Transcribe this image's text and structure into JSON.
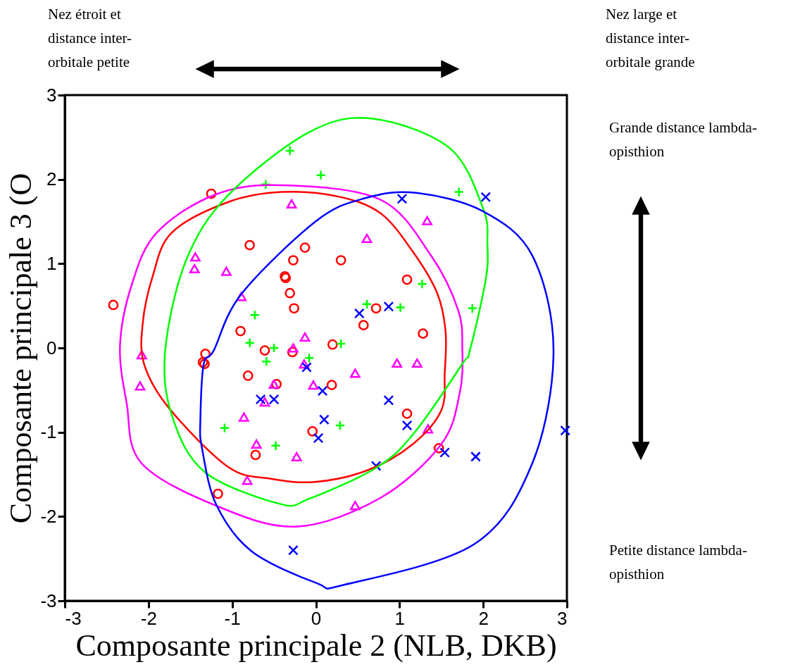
{
  "chart_data": {
    "type": "scatter",
    "xlabel": "Composante principale 2 (NLB, DKB)",
    "ylabel": "Composante principale 3 (O",
    "xlim": [
      -3,
      3
    ],
    "ylim": [
      -3,
      3
    ],
    "xticks": [
      -3,
      -2,
      -1,
      0,
      1,
      2,
      3
    ],
    "yticks": [
      -3,
      -2,
      -1,
      0,
      1,
      2,
      3
    ],
    "grid": false,
    "annotations": [
      "Nez étroit et\ndistance inter-\norbitale petite",
      "Nez large et\ndistance inter-\norbitale grande",
      "Grande distance lambda-\nopisthion",
      "Petite distance lambda-\nopisthion"
    ],
    "series": [
      {
        "marker": "circle",
        "color": "#ff0000",
        "x": [
          -2.42,
          -1.25,
          -0.79,
          -0.13,
          -0.27,
          0.3,
          -0.37,
          -0.36,
          -0.31,
          -0.26,
          1.09,
          0.72,
          0.57,
          1.28,
          -0.9,
          -0.61,
          -1.32,
          -1.35,
          -1.33,
          -0.81,
          -0.28,
          -0.47,
          0.19,
          0.2,
          -0.04,
          -0.72,
          -1.17,
          1.09,
          1.47
        ],
        "values": [
          0.51,
          1.83,
          1.22,
          1.19,
          1.04,
          1.04,
          0.85,
          0.83,
          0.65,
          0.47,
          0.81,
          0.47,
          0.27,
          0.17,
          0.2,
          -0.03,
          -0.07,
          -0.17,
          -0.19,
          -0.33,
          -0.05,
          -0.43,
          -0.44,
          0.04,
          -0.99,
          -1.27,
          -1.73,
          -0.78,
          -1.19
        ]
      },
      {
        "marker": "plus",
        "color": "#00ff00",
        "x": [
          -0.31,
          0.06,
          -0.6,
          1.71,
          -0.73,
          0.61,
          1.01,
          1.27,
          1.87,
          -0.79,
          -0.5,
          -0.59,
          -0.08,
          0.3,
          -1.09,
          -0.48,
          0.29
        ],
        "values": [
          2.34,
          2.05,
          1.94,
          1.85,
          0.39,
          0.52,
          0.48,
          0.76,
          0.47,
          0.06,
          0.0,
          -0.16,
          -0.12,
          0.05,
          -0.95,
          -1.16,
          -0.92
        ]
      },
      {
        "marker": "triangle",
        "color": "#ff00ff",
        "x": [
          -0.29,
          -1.44,
          -1.45,
          -1.07,
          -0.89,
          0.61,
          1.33,
          -0.13,
          -0.27,
          -2.08,
          -2.1,
          -0.14,
          -0.5,
          -0.61,
          -0.86,
          -0.03,
          0.47,
          0.97,
          1.21,
          1.34,
          -0.71,
          -0.23,
          -0.82,
          0.47
        ],
        "values": [
          1.71,
          1.08,
          0.94,
          0.91,
          0.61,
          1.3,
          1.51,
          0.13,
          0.0,
          -0.08,
          -0.45,
          -0.19,
          -0.43,
          -0.64,
          -0.82,
          -0.44,
          -0.3,
          -0.18,
          -0.18,
          -0.96,
          -1.14,
          -1.29,
          -1.57,
          -1.87
        ]
      },
      {
        "marker": "cross",
        "color": "#0000ff",
        "x": [
          1.03,
          2.03,
          0.52,
          0.87,
          -0.11,
          0.08,
          -0.66,
          -0.5,
          0.1,
          0.03,
          0.87,
          1.09,
          0.72,
          1.54,
          1.91,
          2.98,
          -0.27
        ],
        "values": [
          1.77,
          1.79,
          0.41,
          0.49,
          -0.23,
          -0.51,
          -0.61,
          -0.61,
          -0.85,
          -1.07,
          -0.62,
          -0.92,
          -1.4,
          -1.24,
          -1.29,
          -0.98,
          -2.4
        ]
      }
    ]
  }
}
